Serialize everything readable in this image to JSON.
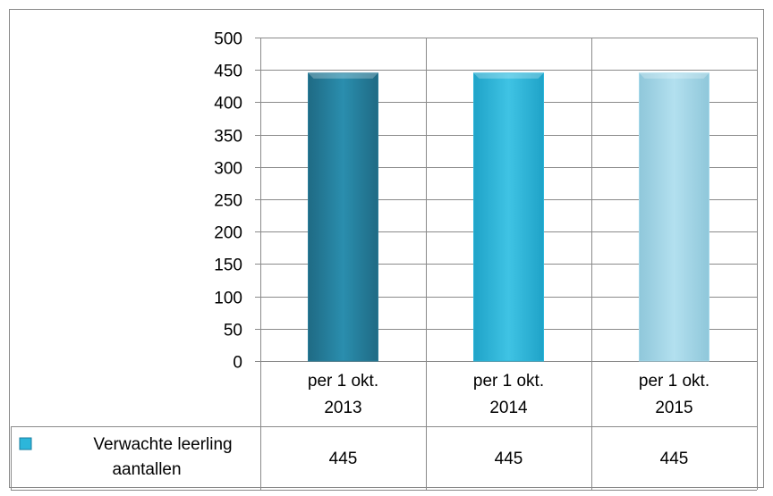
{
  "chart_data": {
    "type": "bar",
    "categories": [
      [
        "per 1 okt.",
        "2013"
      ],
      [
        "per 1 okt.",
        "2014"
      ],
      [
        "per 1 okt.",
        "2015"
      ]
    ],
    "series": [
      {
        "name": [
          "Verwachte leerling",
          "aantallen"
        ],
        "values": [
          445,
          445,
          445
        ]
      }
    ],
    "y_ticks": [
      "0",
      "50",
      "100",
      "150",
      "200",
      "250",
      "300",
      "350",
      "400",
      "450",
      "500"
    ],
    "ylim": [
      0,
      500
    ],
    "grid": true,
    "data_table": true,
    "bar_colors": [
      "#2a7d9a",
      "#2cb6da",
      "#a3d8ea"
    ],
    "legend_marker_color": "#2cb6da",
    "title": "",
    "xlabel": "",
    "ylabel": ""
  }
}
